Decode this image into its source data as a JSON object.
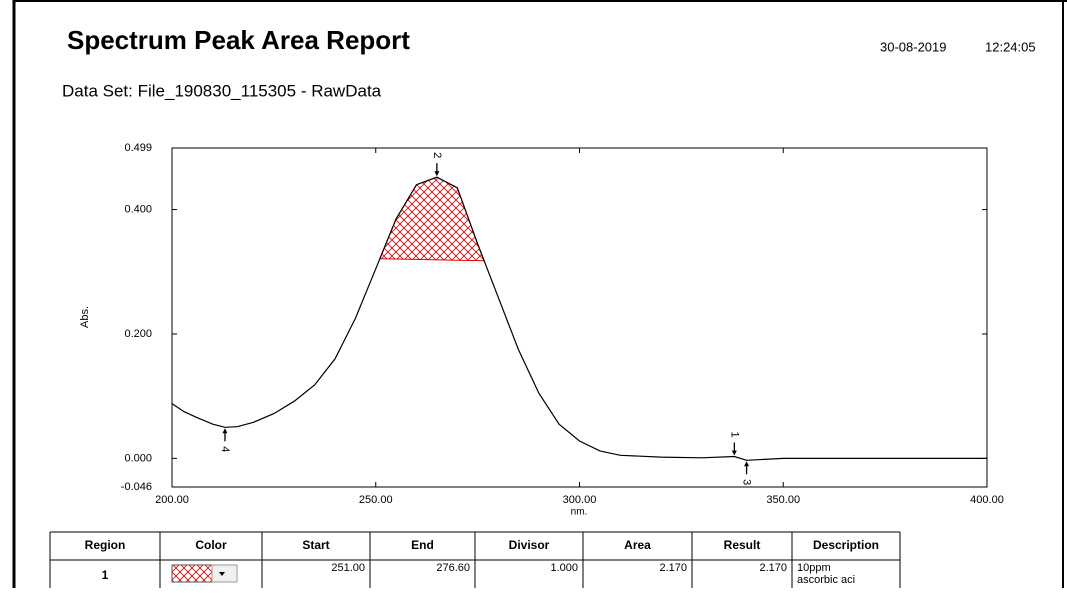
{
  "header": {
    "title": "Spectrum Peak Area Report",
    "date": "30-08-2019",
    "time": "12:24:05"
  },
  "dataset": "Data Set: File_190830_115305 - RawData",
  "chart_data": {
    "type": "line",
    "xlabel": "nm.",
    "ylabel": "Abs.",
    "x": [
      200,
      203,
      206,
      210,
      213,
      216,
      220,
      225,
      230,
      235,
      240,
      245,
      250,
      255,
      260,
      265,
      270,
      275,
      280,
      285,
      290,
      295,
      300,
      305,
      310,
      320,
      330,
      338,
      341,
      350,
      360,
      380,
      400
    ],
    "values": [
      0.088,
      0.075,
      0.066,
      0.055,
      0.05,
      0.051,
      0.058,
      0.072,
      0.092,
      0.118,
      0.16,
      0.225,
      0.305,
      0.385,
      0.44,
      0.452,
      0.435,
      0.345,
      0.26,
      0.175,
      0.105,
      0.055,
      0.028,
      0.012,
      0.005,
      0.002,
      0.001,
      0.003,
      -0.003,
      0.0,
      0.0,
      0.0,
      0.0
    ],
    "color": "#000000",
    "region": {
      "start": 251,
      "end": 276.6,
      "color": "#e00000"
    },
    "peaks": [
      {
        "label": "1",
        "x": 338,
        "y": 0.003
      },
      {
        "label": "2",
        "x": 265,
        "y": 0.452
      },
      {
        "label": "3",
        "x": 341,
        "y": -0.003
      },
      {
        "label": "4",
        "x": 213,
        "y": 0.05
      }
    ],
    "xlim": [
      200,
      400
    ],
    "ylim": [
      -0.046,
      0.499
    ],
    "xticks": [
      {
        "value": 200,
        "label": "200.00"
      },
      {
        "value": 250,
        "label": "250.00"
      },
      {
        "value": 300,
        "label": "300.00"
      },
      {
        "value": 350,
        "label": "350.00"
      },
      {
        "value": 400,
        "label": "400.00"
      }
    ],
    "yticks": [
      -0.046,
      {
        "value": 0,
        "label": "0.000"
      },
      {
        "value": 0.2,
        "label": "0.200"
      },
      {
        "value": 0.4,
        "label": "0.400"
      },
      0.499
    ]
  },
  "table": {
    "header": [
      "Region",
      "Color",
      "Start",
      "End",
      "Divisor",
      "Area",
      "Result",
      "Description"
    ],
    "rows": [
      [
        "1",
        "",
        "251.00",
        "276.60",
        "1.000",
        "2.170",
        "2.170",
        "10ppm ascorbic aci"
      ]
    ]
  }
}
